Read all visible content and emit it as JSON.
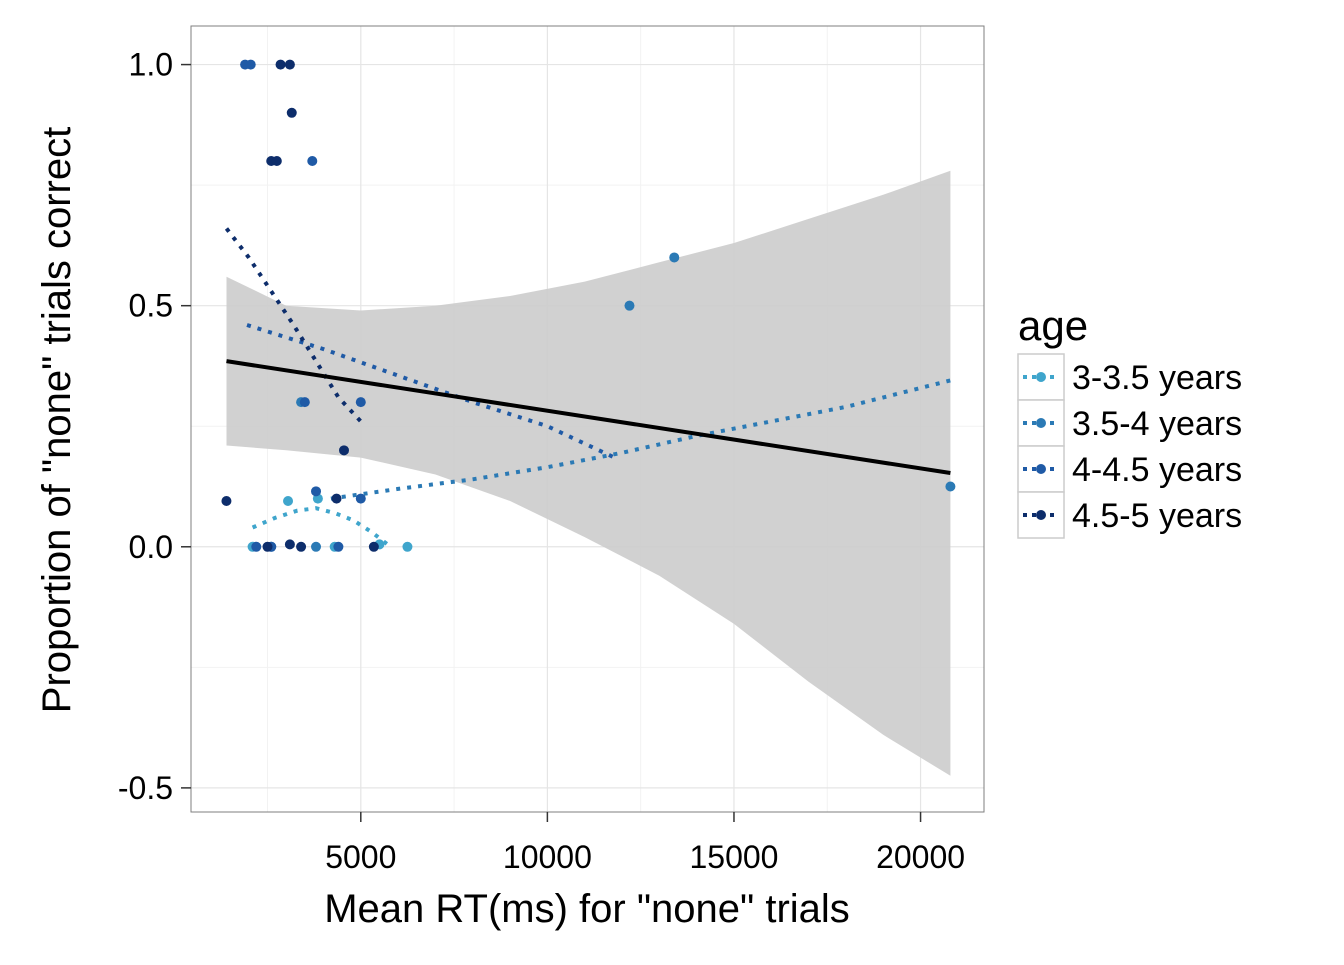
{
  "chart_data": {
    "type": "scatter",
    "xlabel": "Mean RT(ms) for \"none\" trials",
    "ylabel": "Proportion of \"none\" trials correct",
    "xlim": [
      450,
      21700
    ],
    "ylim": [
      -0.55,
      1.08
    ],
    "x_ticks": [
      {
        "value": 5000,
        "label": "5000"
      },
      {
        "value": 10000,
        "label": "10000"
      },
      {
        "value": 15000,
        "label": "15000"
      },
      {
        "value": 20000,
        "label": "20000"
      }
    ],
    "y_ticks": [
      {
        "value": -0.5,
        "label": "-0.5"
      },
      {
        "value": 0.0,
        "label": "0.0"
      },
      {
        "value": 0.5,
        "label": "0.5"
      },
      {
        "value": 1.0,
        "label": "1.0"
      }
    ],
    "grid": true,
    "legend": {
      "title": "age",
      "position": "right"
    },
    "series": [
      {
        "name": "3-3.5 years",
        "color": "#3fa5cc",
        "points": [
          {
            "x": 3050,
            "y": 0.095
          },
          {
            "x": 3850,
            "y": 0.1
          },
          {
            "x": 4300,
            "y": 0.0
          },
          {
            "x": 5500,
            "y": 0.005
          },
          {
            "x": 6250,
            "y": 0.0
          },
          {
            "x": 2100,
            "y": 0.0
          }
        ],
        "trend": [
          {
            "x": 2100,
            "y": 0.04
          },
          {
            "x": 2700,
            "y": 0.06
          },
          {
            "x": 3300,
            "y": 0.075
          },
          {
            "x": 3800,
            "y": 0.08
          },
          {
            "x": 4300,
            "y": 0.07
          },
          {
            "x": 4800,
            "y": 0.055
          },
          {
            "x": 5300,
            "y": 0.03
          },
          {
            "x": 5800,
            "y": 0.0
          }
        ]
      },
      {
        "name": "3.5-4 years",
        "color": "#2b7ab5",
        "points": [
          {
            "x": 12200,
            "y": 0.5
          },
          {
            "x": 13400,
            "y": 0.6
          },
          {
            "x": 20800,
            "y": 0.125
          },
          {
            "x": 3400,
            "y": 0.3
          },
          {
            "x": 3800,
            "y": 0.0
          },
          {
            "x": 2600,
            "y": 0.0
          }
        ],
        "trend": [
          {
            "x": 4200,
            "y": 0.1
          },
          {
            "x": 6000,
            "y": 0.12
          },
          {
            "x": 8000,
            "y": 0.14
          },
          {
            "x": 10000,
            "y": 0.165
          },
          {
            "x": 12000,
            "y": 0.195
          },
          {
            "x": 14000,
            "y": 0.23
          },
          {
            "x": 16000,
            "y": 0.26
          },
          {
            "x": 18000,
            "y": 0.29
          },
          {
            "x": 20800,
            "y": 0.345
          }
        ]
      },
      {
        "name": "4-4.5 years",
        "color": "#1f5aa6",
        "points": [
          {
            "x": 1900,
            "y": 1.0
          },
          {
            "x": 2050,
            "y": 1.0
          },
          {
            "x": 3700,
            "y": 0.8
          },
          {
            "x": 3500,
            "y": 0.3
          },
          {
            "x": 5000,
            "y": 0.3
          },
          {
            "x": 3800,
            "y": 0.115
          },
          {
            "x": 5000,
            "y": 0.1
          },
          {
            "x": 2200,
            "y": 0.0
          },
          {
            "x": 2600,
            "y": 0.0
          },
          {
            "x": 4400,
            "y": 0.0
          }
        ],
        "trend": [
          {
            "x": 1950,
            "y": 0.46
          },
          {
            "x": 4000,
            "y": 0.41
          },
          {
            "x": 6000,
            "y": 0.355
          },
          {
            "x": 8000,
            "y": 0.3
          },
          {
            "x": 10000,
            "y": 0.25
          },
          {
            "x": 11800,
            "y": 0.185
          }
        ]
      },
      {
        "name": "4.5-5 years",
        "color": "#0d2d6b",
        "points": [
          {
            "x": 2850,
            "y": 1.0
          },
          {
            "x": 3100,
            "y": 1.0
          },
          {
            "x": 3150,
            "y": 0.9
          },
          {
            "x": 2600,
            "y": 0.8
          },
          {
            "x": 2750,
            "y": 0.8
          },
          {
            "x": 4550,
            "y": 0.2
          },
          {
            "x": 4350,
            "y": 0.1
          },
          {
            "x": 1400,
            "y": 0.095
          },
          {
            "x": 3100,
            "y": 0.005
          },
          {
            "x": 3400,
            "y": 0.0
          },
          {
            "x": 5350,
            "y": 0.0
          },
          {
            "x": 2500,
            "y": 0.0
          }
        ],
        "trend": [
          {
            "x": 1400,
            "y": 0.66
          },
          {
            "x": 2000,
            "y": 0.6
          },
          {
            "x": 2600,
            "y": 0.53
          },
          {
            "x": 3200,
            "y": 0.46
          },
          {
            "x": 3800,
            "y": 0.385
          },
          {
            "x": 4400,
            "y": 0.31
          },
          {
            "x": 5000,
            "y": 0.26
          }
        ]
      }
    ],
    "fit_line": {
      "color": "#000000",
      "points": [
        {
          "x": 1400,
          "y": 0.385
        },
        {
          "x": 20800,
          "y": 0.153
        }
      ]
    },
    "confidence_band": {
      "color": "#cccccc",
      "upper": [
        {
          "x": 1400,
          "y": 0.56
        },
        {
          "x": 3000,
          "y": 0.5
        },
        {
          "x": 5000,
          "y": 0.49
        },
        {
          "x": 7000,
          "y": 0.5
        },
        {
          "x": 9000,
          "y": 0.52
        },
        {
          "x": 11000,
          "y": 0.55
        },
        {
          "x": 13000,
          "y": 0.59
        },
        {
          "x": 15000,
          "y": 0.63
        },
        {
          "x": 17000,
          "y": 0.68
        },
        {
          "x": 19000,
          "y": 0.73
        },
        {
          "x": 20800,
          "y": 0.78
        }
      ],
      "lower": [
        {
          "x": 20800,
          "y": -0.475
        },
        {
          "x": 19000,
          "y": -0.39
        },
        {
          "x": 17000,
          "y": -0.28
        },
        {
          "x": 15000,
          "y": -0.16
        },
        {
          "x": 13000,
          "y": -0.06
        },
        {
          "x": 11000,
          "y": 0.02
        },
        {
          "x": 9000,
          "y": 0.095
        },
        {
          "x": 7000,
          "y": 0.15
        },
        {
          "x": 5000,
          "y": 0.185
        },
        {
          "x": 3000,
          "y": 0.2
        },
        {
          "x": 1400,
          "y": 0.21
        }
      ]
    }
  }
}
